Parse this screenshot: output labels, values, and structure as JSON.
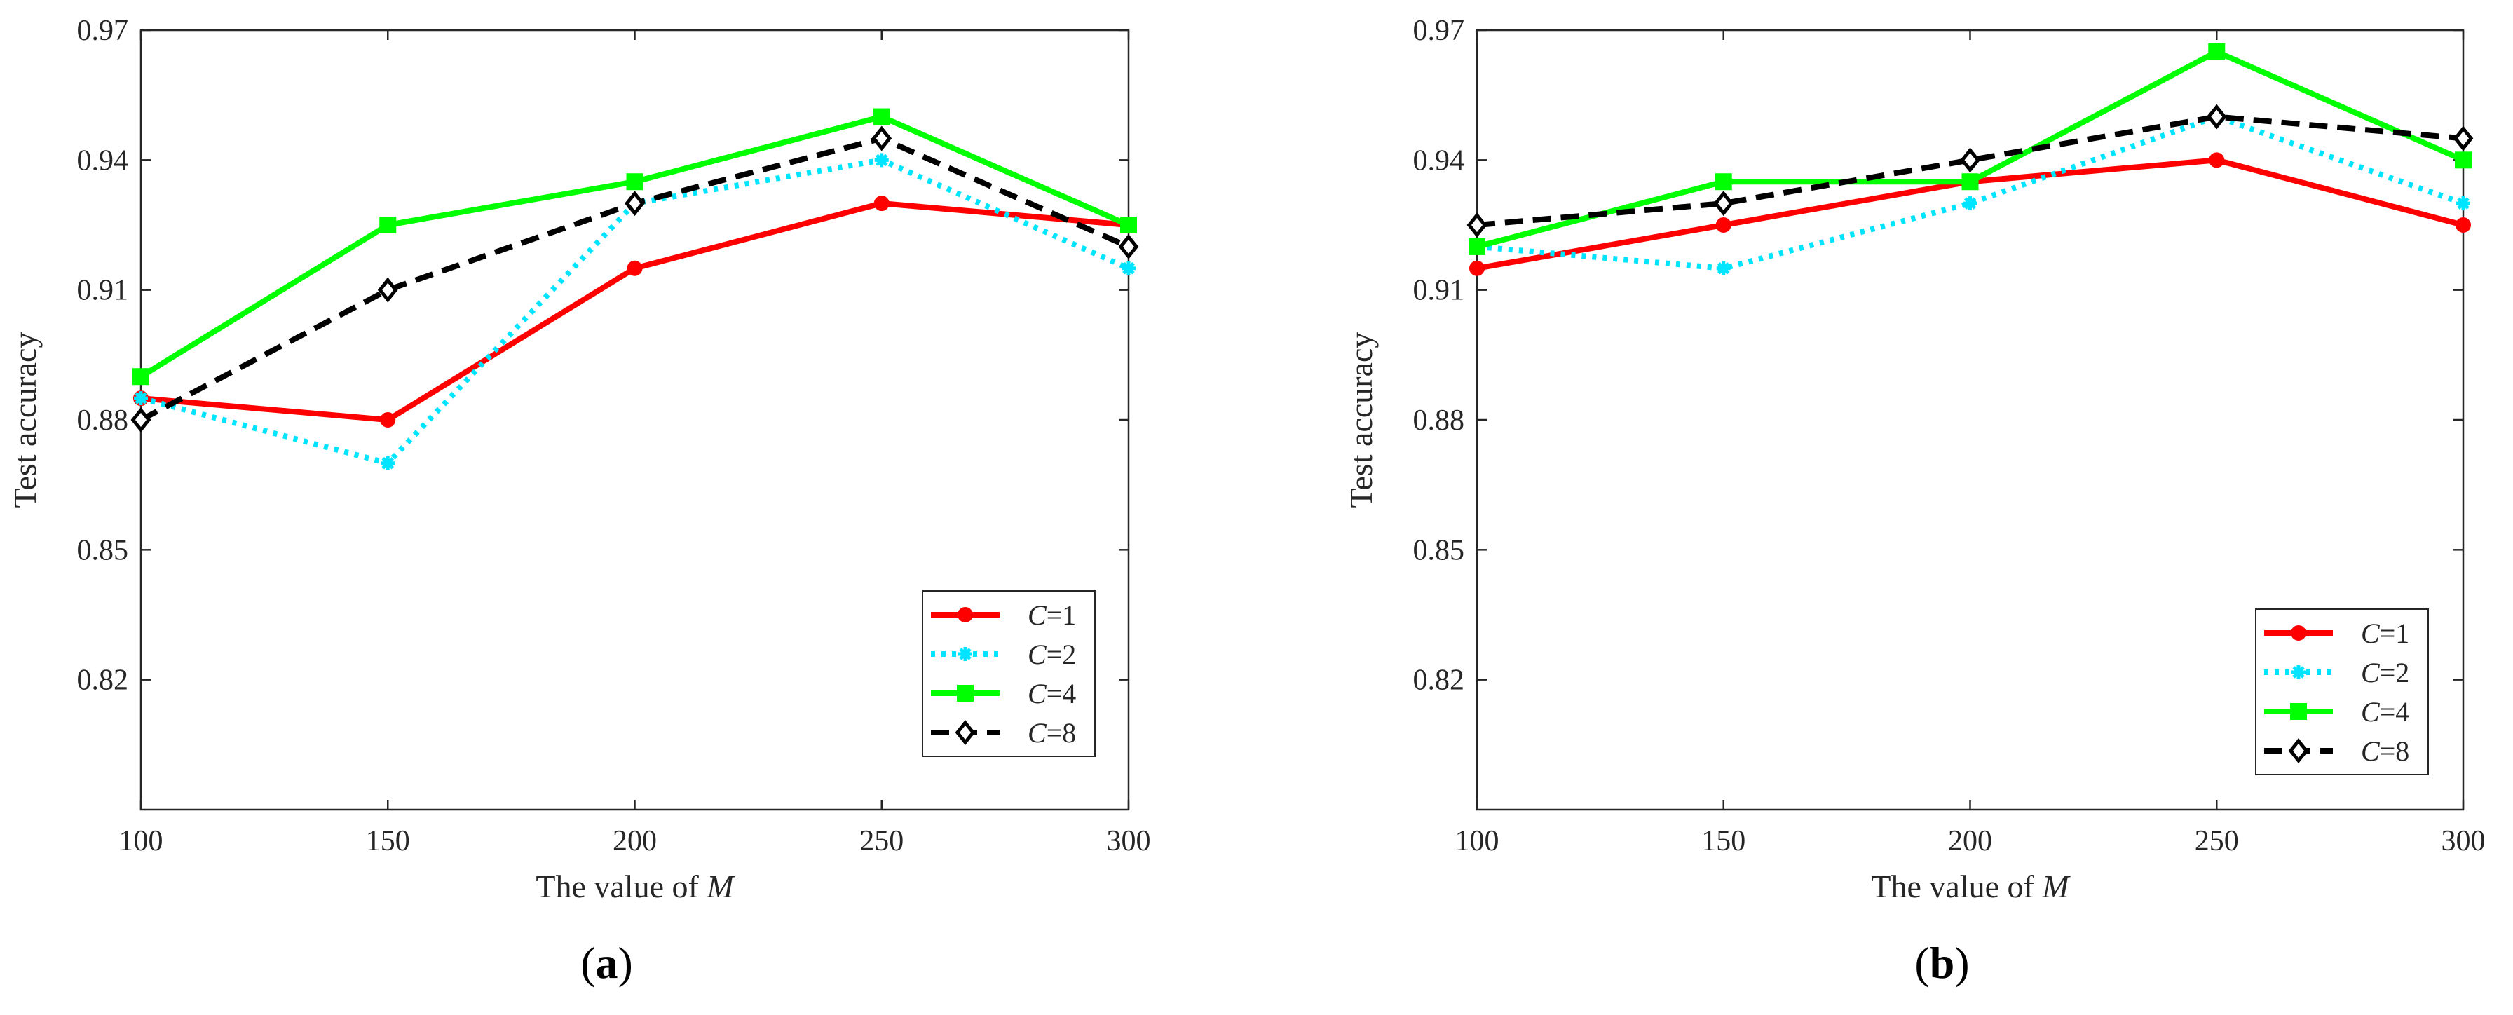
{
  "chart_data": [
    {
      "type": "line",
      "panel_label_pre": "(",
      "panel_label": "a",
      "panel_label_post": ")",
      "xlabel_text": "The value of ",
      "xlabel_var": "M",
      "ylabel": "Test accuracy",
      "x": [
        100,
        150,
        200,
        250,
        300
      ],
      "xlim": [
        100,
        300
      ],
      "ylim": [
        0.79,
        0.97
      ],
      "xticks": [
        "100",
        "150",
        "200",
        "250",
        "300"
      ],
      "yticks": [
        "0.82",
        "0.85",
        "0.88",
        "0.91",
        "0.94",
        "0.97"
      ],
      "ytick_values": [
        0.82,
        0.85,
        0.88,
        0.91,
        0.94,
        0.97
      ],
      "legend_position": "bottom-right",
      "series": [
        {
          "var": "C",
          "eq": "=1",
          "color": "#ff0000",
          "dash": "solid",
          "marker": "dot",
          "values": [
            0.885,
            0.88,
            0.915,
            0.93,
            0.925
          ]
        },
        {
          "var": "C",
          "eq": "=2",
          "color": "#00e5ff",
          "dash": "dotted",
          "marker": "asterisk",
          "values": [
            0.885,
            0.87,
            0.93,
            0.94,
            0.915
          ]
        },
        {
          "var": "C",
          "eq": "=4",
          "color": "#00ff00",
          "dash": "solid",
          "marker": "square",
          "values": [
            0.89,
            0.925,
            0.935,
            0.95,
            0.925
          ]
        },
        {
          "var": "C",
          "eq": "=8",
          "color": "#000000",
          "dash": "dashed",
          "marker": "diamond",
          "values": [
            0.88,
            0.91,
            0.93,
            0.945,
            0.92
          ]
        }
      ]
    },
    {
      "type": "line",
      "panel_label_pre": "(",
      "panel_label": "b",
      "panel_label_post": ")",
      "xlabel_text": "The value of ",
      "xlabel_var": "M",
      "ylabel": "Test accuracy",
      "x": [
        100,
        150,
        200,
        250,
        300
      ],
      "xlim": [
        100,
        300
      ],
      "ylim": [
        0.79,
        0.97
      ],
      "xticks": [
        "100",
        "150",
        "200",
        "250",
        "300"
      ],
      "yticks": [
        "0.82",
        "0.85",
        "0.88",
        "0.91",
        "0.94",
        "0.97"
      ],
      "ytick_values": [
        0.82,
        0.85,
        0.88,
        0.91,
        0.94,
        0.97
      ],
      "legend_position": "bottom-right",
      "series": [
        {
          "var": "C",
          "eq": "=1",
          "color": "#ff0000",
          "dash": "solid",
          "marker": "dot",
          "values": [
            0.915,
            0.925,
            0.935,
            0.94,
            0.925
          ]
        },
        {
          "var": "C",
          "eq": "=2",
          "color": "#00e5ff",
          "dash": "dotted",
          "marker": "asterisk",
          "values": [
            0.92,
            0.915,
            0.93,
            0.95,
            0.93
          ]
        },
        {
          "var": "C",
          "eq": "=4",
          "color": "#00ff00",
          "dash": "solid",
          "marker": "square",
          "values": [
            0.92,
            0.935,
            0.935,
            0.965,
            0.94
          ]
        },
        {
          "var": "C",
          "eq": "=8",
          "color": "#000000",
          "dash": "dashed",
          "marker": "diamond",
          "values": [
            0.925,
            0.93,
            0.94,
            0.95,
            0.945
          ]
        }
      ]
    }
  ]
}
